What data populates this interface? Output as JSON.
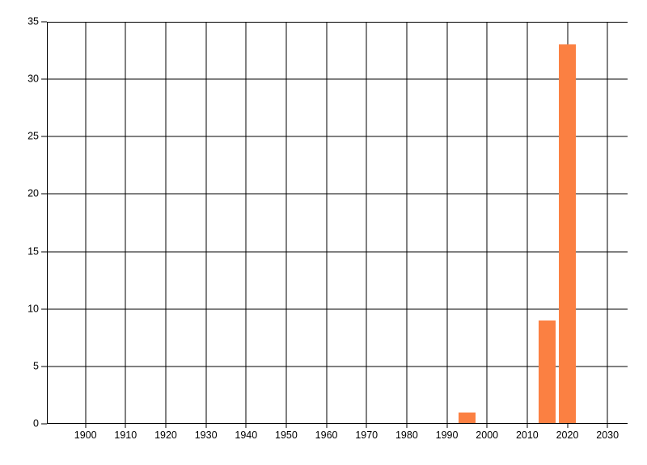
{
  "chart_data": {
    "type": "bar",
    "title": "",
    "xlabel": "",
    "ylabel": "",
    "x": [
      1995,
      2015,
      2020
    ],
    "values": [
      1,
      9,
      33
    ],
    "bar_width_years": 4.2,
    "xlim": [
      1890.4,
      2035.0
    ],
    "ylim": [
      0,
      35
    ],
    "x_ticks": [
      1900,
      1910,
      1920,
      1930,
      1940,
      1950,
      1960,
      1970,
      1980,
      1990,
      2000,
      2010,
      2020,
      2030
    ],
    "y_ticks": [
      0,
      5,
      10,
      15,
      20,
      25,
      30,
      35
    ],
    "grid": "on",
    "legend": "none",
    "colors": {
      "bar": "#fb8042",
      "grid": "#000000",
      "axis": "#000000",
      "label": "#000000",
      "background": "#ffffff"
    }
  }
}
